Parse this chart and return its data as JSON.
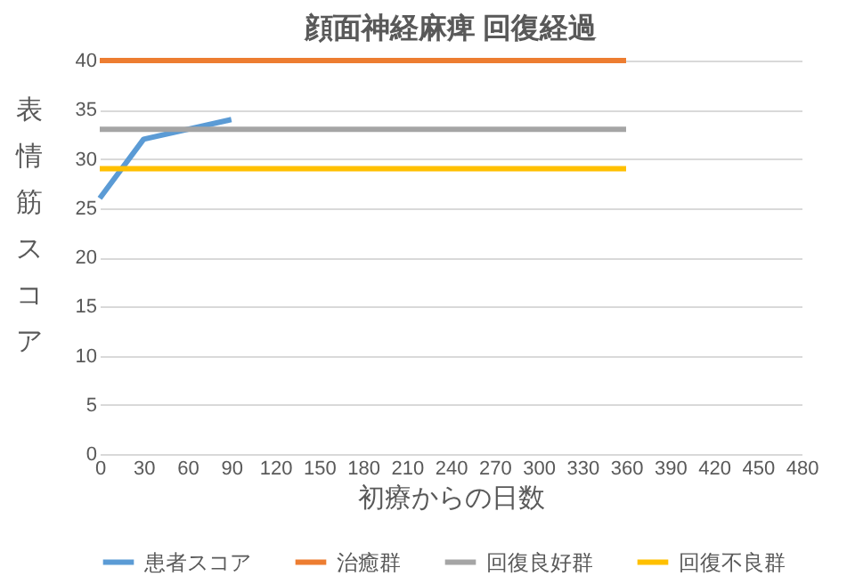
{
  "chart_data": {
    "type": "line",
    "title": "顔面神経麻痺  回復経過",
    "xlabel": "初療からの日数",
    "ylabel": "表情筋スコア",
    "xlim": [
      0,
      480
    ],
    "xticks": [
      0,
      30,
      60,
      90,
      120,
      150,
      180,
      210,
      240,
      270,
      300,
      330,
      360,
      390,
      420,
      450,
      480
    ],
    "ylim": [
      0,
      40
    ],
    "yticks": [
      0,
      5,
      10,
      15,
      20,
      25,
      30,
      35,
      40
    ],
    "grid": "y",
    "legend": "bottom",
    "marker": "none",
    "series": [
      {
        "name": "患者スコア",
        "color": "#5b9bd5",
        "x": [
          0,
          30,
          90
        ],
        "values": [
          26,
          32,
          34
        ]
      },
      {
        "name": "治癒群",
        "color": "#ed7d31",
        "x": [
          0,
          360
        ],
        "values": [
          40,
          40
        ]
      },
      {
        "name": "回復良好群",
        "color": "#a5a5a5",
        "x": [
          0,
          360
        ],
        "values": [
          33,
          33
        ]
      },
      {
        "name": "回復不良群",
        "color": "#ffc000",
        "x": [
          0,
          360
        ],
        "values": [
          29,
          29
        ]
      }
    ]
  }
}
